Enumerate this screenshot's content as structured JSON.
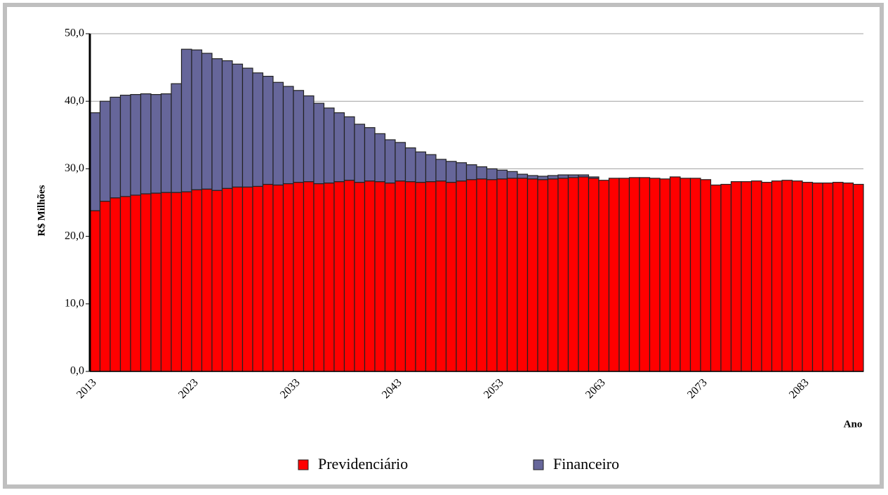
{
  "chart_data": {
    "type": "stacked_bar",
    "y_label": "R$ Milhões",
    "x_label": "Ano",
    "categories": [
      "2013",
      null,
      null,
      null,
      null,
      null,
      null,
      null,
      null,
      null,
      "2023",
      null,
      null,
      null,
      null,
      null,
      null,
      null,
      null,
      null,
      "2033",
      null,
      null,
      null,
      null,
      null,
      null,
      null,
      null,
      null,
      "2043",
      null,
      null,
      null,
      null,
      null,
      null,
      null,
      null,
      null,
      "2053",
      null,
      null,
      null,
      null,
      null,
      null,
      null,
      null,
      null,
      "2063",
      null,
      null,
      null,
      null,
      null,
      null,
      null,
      null,
      null,
      "2073",
      null,
      null,
      null,
      null,
      null,
      null,
      null,
      null,
      null,
      "2083",
      null,
      null,
      null,
      null,
      null
    ],
    "series": [
      {
        "name": "Previdenciário",
        "color": "#ff0000",
        "values": [
          23.8,
          25.2,
          25.7,
          25.9,
          26.1,
          26.3,
          26.4,
          26.5,
          26.5,
          26.6,
          26.9,
          27.0,
          26.8,
          27.1,
          27.3,
          27.3,
          27.4,
          27.7,
          27.6,
          27.8,
          28.0,
          28.1,
          27.8,
          27.9,
          28.1,
          28.3,
          28.0,
          28.2,
          28.1,
          27.9,
          28.2,
          28.1,
          28.0,
          28.1,
          28.2,
          28.0,
          28.2,
          28.4,
          28.5,
          28.4,
          28.5,
          28.6,
          28.6,
          28.5,
          28.4,
          28.5,
          28.6,
          28.7,
          28.8,
          28.6,
          28.3,
          28.6,
          28.6,
          28.7,
          28.7,
          28.6,
          28.5,
          28.8,
          28.6,
          28.6,
          28.4,
          27.6,
          27.7,
          28.1,
          28.1,
          28.2,
          28.0,
          28.2,
          28.3,
          28.2,
          28.0,
          27.9,
          27.9,
          28.0,
          27.9,
          27.7
        ]
      },
      {
        "name": "Financeiro",
        "color": "#66669a",
        "values": [
          14.5,
          14.8,
          14.9,
          15.0,
          14.9,
          14.8,
          14.6,
          14.6,
          16.1,
          21.1,
          20.7,
          20.1,
          19.5,
          18.9,
          18.2,
          17.6,
          16.8,
          16.0,
          15.2,
          14.4,
          13.6,
          12.7,
          11.9,
          11.1,
          10.2,
          9.4,
          8.6,
          7.9,
          7.1,
          6.4,
          5.7,
          5.0,
          4.5,
          4.0,
          3.2,
          3.1,
          2.7,
          2.2,
          1.8,
          1.6,
          1.3,
          1.0,
          0.6,
          0.5,
          0.5,
          0.5,
          0.5,
          0.4,
          0.3,
          0.2,
          0,
          0,
          0,
          0,
          0,
          0,
          0,
          0,
          0,
          0,
          0,
          0,
          0,
          0,
          0,
          0,
          0,
          0,
          0,
          0,
          0,
          0,
          0,
          0,
          0,
          0
        ]
      }
    ],
    "ylim": [
      0,
      50
    ],
    "yticks": [
      {
        "value": 0,
        "label": "0,0"
      },
      {
        "value": 10,
        "label": "10,0"
      },
      {
        "value": 20,
        "label": "20,0"
      },
      {
        "value": 30,
        "label": "30,0"
      },
      {
        "value": 40,
        "label": "40,0"
      },
      {
        "value": 50,
        "label": "50,0"
      }
    ],
    "grid": true
  }
}
